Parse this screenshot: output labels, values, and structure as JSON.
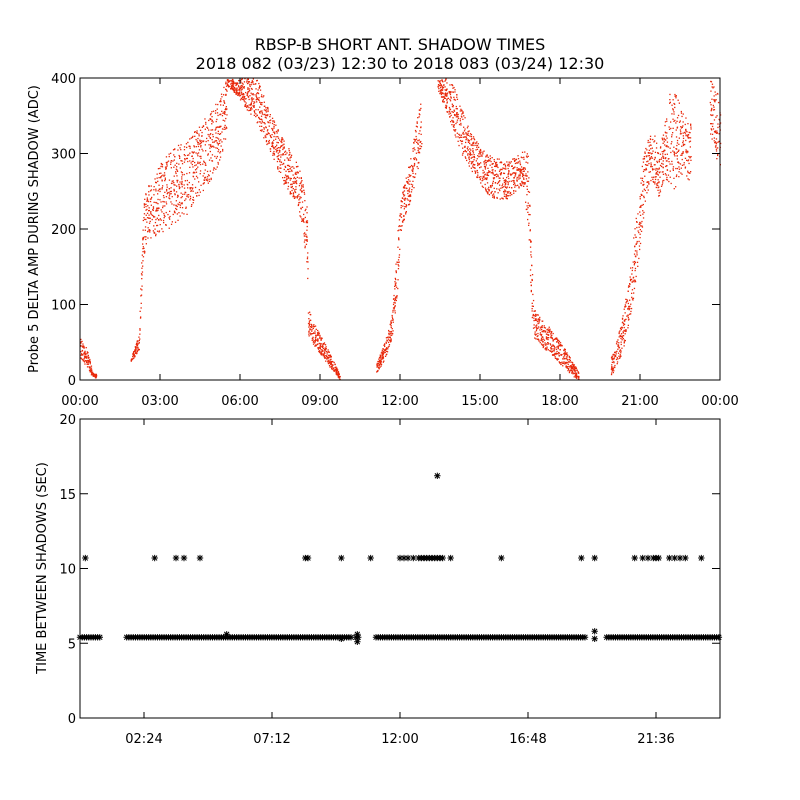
{
  "title_line1": "RBSP-B SHORT ANT. SHADOW TIMES",
  "title_line2": "2018 082 (03/23) 12:30 to 2018 083 (03/24) 12:30",
  "colors": {
    "top_points": "#e8280a",
    "bottom_points": "#000000",
    "axes": "#000000"
  },
  "chart_data": [
    {
      "type": "scatter",
      "ylabel": "Probe 5 DELTA AMP DURING SHADOW (ADC)",
      "xlabel": "",
      "x_unit": "hours",
      "xlim": [
        0,
        24
      ],
      "ylim": [
        0,
        400
      ],
      "xticks": [
        0,
        3,
        6,
        9,
        12,
        15,
        18,
        21,
        24
      ],
      "xtick_labels": [
        "00:00",
        "03:00",
        "06:00",
        "09:00",
        "12:00",
        "15:00",
        "18:00",
        "21:00",
        "00:00"
      ],
      "yticks": [
        0,
        100,
        200,
        300,
        400
      ],
      "ytick_labels": [
        "0",
        "100",
        "200",
        "300",
        "400"
      ],
      "marker": "dot",
      "series": [
        {
          "x": [
            0.0,
            0.1,
            0.2,
            0.3,
            0.4,
            0.5,
            0.6
          ],
          "y_low": [
            30,
            25,
            20,
            15,
            8,
            5,
            3
          ],
          "y_high": [
            55,
            50,
            45,
            35,
            20,
            10,
            8
          ]
        },
        {
          "x": [
            1.9,
            2.0,
            2.1,
            2.2,
            2.35,
            2.5,
            2.7,
            3.0,
            3.3,
            3.6,
            4.0,
            4.3,
            4.6,
            5.0,
            5.3,
            5.5
          ],
          "y_low": [
            25,
            30,
            35,
            40,
            160,
            185,
            190,
            195,
            200,
            210,
            220,
            240,
            250,
            270,
            300,
            330
          ],
          "y_high": [
            30,
            40,
            50,
            60,
            230,
            260,
            270,
            290,
            300,
            310,
            320,
            330,
            345,
            360,
            390,
            400
          ]
        },
        {
          "x": [
            5.5,
            5.8,
            6.0,
            6.3,
            6.6,
            7.0,
            7.3,
            7.6,
            8.0,
            8.3,
            8.5,
            8.55,
            8.7,
            9.0,
            9.3,
            9.6,
            9.75
          ],
          "y_low": [
            390,
            380,
            370,
            355,
            340,
            310,
            290,
            260,
            240,
            210,
            150,
            60,
            50,
            35,
            20,
            8,
            0
          ],
          "y_high": [
            400,
            400,
            400,
            400,
            400,
            370,
            340,
            320,
            300,
            270,
            230,
            95,
            80,
            60,
            40,
            18,
            5
          ]
        },
        {
          "x": [
            11.1,
            11.3,
            11.5,
            11.7,
            11.9,
            12.0,
            12.2,
            12.4,
            12.6,
            12.8
          ],
          "y_low": [
            10,
            20,
            35,
            60,
            120,
            195,
            220,
            240,
            270,
            310
          ],
          "y_high": [
            25,
            40,
            60,
            90,
            200,
            240,
            270,
            300,
            340,
            380
          ]
        },
        {
          "x": [
            13.4,
            13.7,
            14.0,
            14.3,
            14.6,
            15.0,
            15.3,
            15.6,
            16.0,
            16.3,
            16.6,
            16.8,
            16.9,
            17.0,
            17.3,
            17.6,
            17.9,
            18.2,
            18.5,
            18.7
          ],
          "y_low": [
            380,
            360,
            330,
            300,
            280,
            260,
            245,
            240,
            240,
            250,
            260,
            200,
            100,
            55,
            45,
            35,
            25,
            15,
            5,
            0
          ],
          "y_high": [
            400,
            400,
            390,
            360,
            330,
            310,
            300,
            295,
            290,
            295,
            305,
            300,
            180,
            95,
            80,
            70,
            55,
            40,
            22,
            10
          ]
        },
        {
          "x": [
            19.9,
            20.1,
            20.3,
            20.5,
            20.7,
            20.9,
            21.1,
            21.3,
            21.5,
            21.7,
            21.9,
            22.1,
            22.3,
            22.5,
            22.7,
            22.9
          ],
          "y_low": [
            5,
            20,
            35,
            60,
            100,
            150,
            210,
            250,
            260,
            240,
            270,
            260,
            250,
            270,
            270,
            260
          ],
          "y_high": [
            30,
            50,
            80,
            120,
            180,
            240,
            300,
            320,
            330,
            300,
            340,
            380,
            390,
            360,
            350,
            340
          ]
        },
        {
          "x": [
            23.6,
            23.8,
            24.0
          ],
          "y_low": [
            330,
            300,
            280
          ],
          "y_high": [
            400,
            390,
            370
          ]
        }
      ]
    },
    {
      "type": "scatter",
      "ylabel": "TIME BETWEEN SHADOWS (SEC)",
      "xlabel": "",
      "x_unit": "hours",
      "xlim": [
        0,
        24
      ],
      "ylim": [
        0,
        20
      ],
      "xticks": [
        2.4,
        7.2,
        12.0,
        16.8,
        21.6
      ],
      "xtick_labels": [
        "02:24",
        "07:12",
        "12:00",
        "16:48",
        "21:36"
      ],
      "yticks": [
        0,
        5,
        10,
        15,
        20
      ],
      "ytick_labels": [
        "0",
        "5",
        "10",
        "15",
        "20"
      ],
      "marker": "asterisk",
      "series": [
        {
          "name": "",
          "baseline": 5.4,
          "intervals": [
            [
              0.0,
              0.75
            ],
            [
              1.75,
              10.2
            ],
            [
              10.35,
              10.45
            ],
            [
              11.1,
              18.95
            ],
            [
              19.75,
              24.0
            ]
          ]
        },
        {
          "name": "",
          "x": [
            0.2,
            2.8,
            3.6,
            3.9,
            4.5,
            8.45,
            8.55,
            9.8,
            10.9,
            12.0,
            12.15,
            12.3,
            12.5,
            12.7,
            12.8,
            12.9,
            13.0,
            13.1,
            13.2,
            13.3,
            13.4,
            13.5,
            13.6,
            13.9,
            15.8,
            18.8,
            19.3,
            20.8,
            21.1,
            21.3,
            21.5,
            21.6,
            21.7,
            22.1,
            22.3,
            22.5,
            22.7,
            23.3
          ],
          "y": [
            10.7,
            10.7,
            10.7,
            10.7,
            10.7,
            10.7,
            10.7,
            10.7,
            10.7,
            10.7,
            10.7,
            10.7,
            10.7,
            10.7,
            10.7,
            10.7,
            10.7,
            10.7,
            10.7,
            10.7,
            10.7,
            10.7,
            10.7,
            10.7,
            10.7,
            10.7,
            10.7,
            10.7,
            10.7,
            10.7,
            10.7,
            10.7,
            10.7,
            10.7,
            10.7,
            10.7,
            10.7,
            10.7
          ]
        },
        {
          "name": "",
          "x": [
            5.5,
            9.8,
            10.4,
            10.4,
            19.3,
            19.3,
            13.4
          ],
          "y": [
            5.6,
            5.3,
            5.6,
            5.1,
            5.8,
            5.3,
            16.2
          ]
        }
      ]
    }
  ]
}
